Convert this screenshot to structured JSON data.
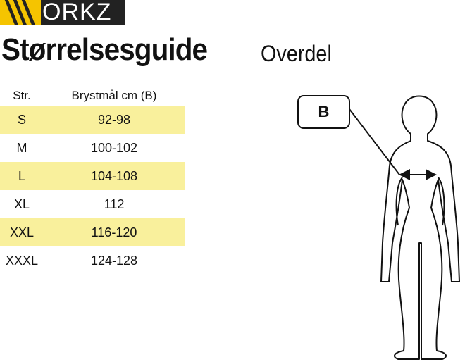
{
  "logo": {
    "text": "WORKZ",
    "visible_text": "ORKZ",
    "brand_color": "#f5c400"
  },
  "title": {
    "main": "Størrelsesguide",
    "sub": "Overdel"
  },
  "table": {
    "headers": [
      "Str.",
      "Brystmål cm (B)"
    ],
    "rows": [
      {
        "size": "S",
        "chest": "92-98",
        "highlight": true
      },
      {
        "size": "M",
        "chest": "100-102",
        "highlight": false
      },
      {
        "size": "L",
        "chest": "104-108",
        "highlight": true
      },
      {
        "size": "XL",
        "chest": "112",
        "highlight": false
      },
      {
        "size": "XXL",
        "chest": "116-120",
        "highlight": true
      },
      {
        "size": "XXXL",
        "chest": "124-128",
        "highlight": false
      }
    ],
    "highlight_color": "#f9f09c"
  },
  "diagram": {
    "label": "B"
  }
}
